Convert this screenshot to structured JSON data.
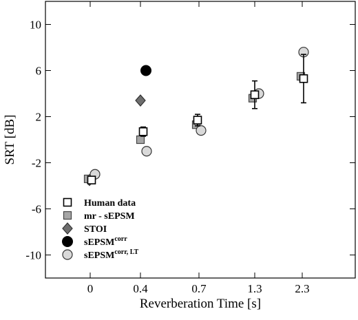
{
  "chart_data": {
    "type": "scatter",
    "xlabel": "Reverberation Time [s]",
    "ylabel": "SRT [dB]",
    "categories": [
      "0",
      "0.4",
      "0.7",
      "1.3",
      "2.3"
    ],
    "ylim": [
      -12,
      12
    ],
    "yticks": [
      10,
      6,
      2,
      -2,
      -6,
      -10
    ],
    "grid": false,
    "legend_position": "bottom-left",
    "series": [
      {
        "name": "Human data",
        "marker": "square-open",
        "color": "#000000",
        "values": [
          -3.5,
          0.7,
          1.7,
          3.9,
          5.3
        ],
        "error": [
          0.3,
          0.4,
          0.5,
          1.2,
          2.1
        ]
      },
      {
        "name": "mr - sEPSM",
        "marker": "square-filled",
        "color": "#a6a6a6",
        "values": [
          -3.4,
          0.0,
          1.3,
          3.6,
          5.5
        ]
      },
      {
        "name": "STOI",
        "marker": "diamond",
        "color": "#6e6e6e",
        "values": [
          -3.5,
          3.4,
          null,
          null,
          null
        ]
      },
      {
        "name": "sEPSM",
        "name_sup": "corr",
        "marker": "circle-filled",
        "color": "#000000",
        "values": [
          null,
          6.0,
          null,
          null,
          null
        ]
      },
      {
        "name": "sEPSM",
        "name_sup": "corr, LT",
        "marker": "circle-open",
        "color": "#d9d9d9",
        "values": [
          -3.0,
          -1.0,
          0.8,
          4.0,
          7.6
        ]
      }
    ]
  }
}
